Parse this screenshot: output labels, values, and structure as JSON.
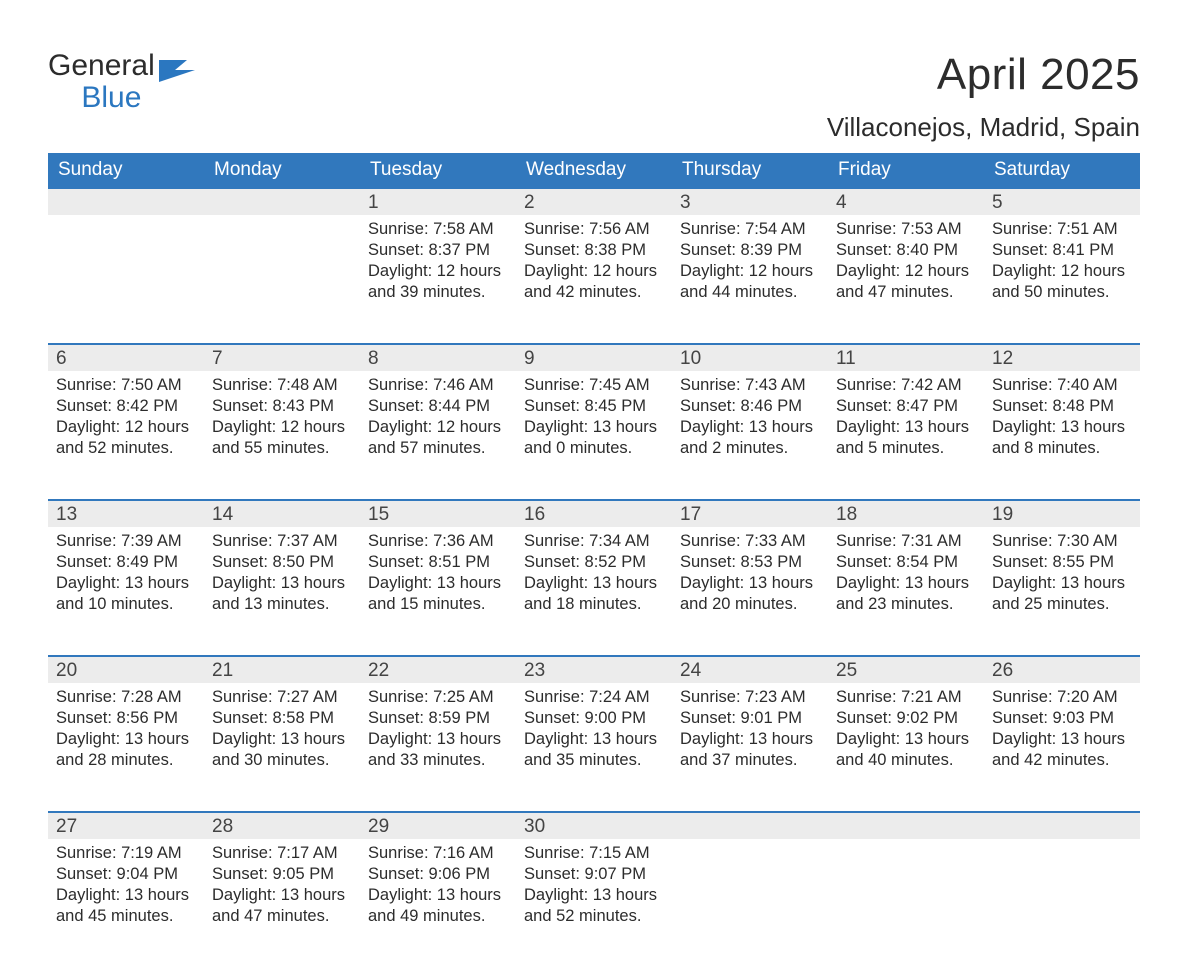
{
  "logo": {
    "line1": "General",
    "line2": "Blue"
  },
  "title": "April 2025",
  "subtitle": "Villaconejos, Madrid, Spain",
  "theme": {
    "header_bg": "#3178bd",
    "header_text": "#ffffff",
    "daynum_bg": "#ececec",
    "daynum_border": "#3178bd",
    "body_bg": "#ffffff",
    "text_color": "#2c2c2c",
    "logo_blue": "#2b77c0",
    "title_fontsize": 44,
    "subtitle_fontsize": 26,
    "header_fontsize": 19,
    "cell_fontsize": 16.5
  },
  "calendar": {
    "type": "table",
    "columns": [
      "Sunday",
      "Monday",
      "Tuesday",
      "Wednesday",
      "Thursday",
      "Friday",
      "Saturday"
    ],
    "weeks": [
      [
        null,
        null,
        {
          "day": "1",
          "sunrise": "Sunrise: 7:58 AM",
          "sunset": "Sunset: 8:37 PM",
          "daylight": "Daylight: 12 hours and 39 minutes."
        },
        {
          "day": "2",
          "sunrise": "Sunrise: 7:56 AM",
          "sunset": "Sunset: 8:38 PM",
          "daylight": "Daylight: 12 hours and 42 minutes."
        },
        {
          "day": "3",
          "sunrise": "Sunrise: 7:54 AM",
          "sunset": "Sunset: 8:39 PM",
          "daylight": "Daylight: 12 hours and 44 minutes."
        },
        {
          "day": "4",
          "sunrise": "Sunrise: 7:53 AM",
          "sunset": "Sunset: 8:40 PM",
          "daylight": "Daylight: 12 hours and 47 minutes."
        },
        {
          "day": "5",
          "sunrise": "Sunrise: 7:51 AM",
          "sunset": "Sunset: 8:41 PM",
          "daylight": "Daylight: 12 hours and 50 minutes."
        }
      ],
      [
        {
          "day": "6",
          "sunrise": "Sunrise: 7:50 AM",
          "sunset": "Sunset: 8:42 PM",
          "daylight": "Daylight: 12 hours and 52 minutes."
        },
        {
          "day": "7",
          "sunrise": "Sunrise: 7:48 AM",
          "sunset": "Sunset: 8:43 PM",
          "daylight": "Daylight: 12 hours and 55 minutes."
        },
        {
          "day": "8",
          "sunrise": "Sunrise: 7:46 AM",
          "sunset": "Sunset: 8:44 PM",
          "daylight": "Daylight: 12 hours and 57 minutes."
        },
        {
          "day": "9",
          "sunrise": "Sunrise: 7:45 AM",
          "sunset": "Sunset: 8:45 PM",
          "daylight": "Daylight: 13 hours and 0 minutes."
        },
        {
          "day": "10",
          "sunrise": "Sunrise: 7:43 AM",
          "sunset": "Sunset: 8:46 PM",
          "daylight": "Daylight: 13 hours and 2 minutes."
        },
        {
          "day": "11",
          "sunrise": "Sunrise: 7:42 AM",
          "sunset": "Sunset: 8:47 PM",
          "daylight": "Daylight: 13 hours and 5 minutes."
        },
        {
          "day": "12",
          "sunrise": "Sunrise: 7:40 AM",
          "sunset": "Sunset: 8:48 PM",
          "daylight": "Daylight: 13 hours and 8 minutes."
        }
      ],
      [
        {
          "day": "13",
          "sunrise": "Sunrise: 7:39 AM",
          "sunset": "Sunset: 8:49 PM",
          "daylight": "Daylight: 13 hours and 10 minutes."
        },
        {
          "day": "14",
          "sunrise": "Sunrise: 7:37 AM",
          "sunset": "Sunset: 8:50 PM",
          "daylight": "Daylight: 13 hours and 13 minutes."
        },
        {
          "day": "15",
          "sunrise": "Sunrise: 7:36 AM",
          "sunset": "Sunset: 8:51 PM",
          "daylight": "Daylight: 13 hours and 15 minutes."
        },
        {
          "day": "16",
          "sunrise": "Sunrise: 7:34 AM",
          "sunset": "Sunset: 8:52 PM",
          "daylight": "Daylight: 13 hours and 18 minutes."
        },
        {
          "day": "17",
          "sunrise": "Sunrise: 7:33 AM",
          "sunset": "Sunset: 8:53 PM",
          "daylight": "Daylight: 13 hours and 20 minutes."
        },
        {
          "day": "18",
          "sunrise": "Sunrise: 7:31 AM",
          "sunset": "Sunset: 8:54 PM",
          "daylight": "Daylight: 13 hours and 23 minutes."
        },
        {
          "day": "19",
          "sunrise": "Sunrise: 7:30 AM",
          "sunset": "Sunset: 8:55 PM",
          "daylight": "Daylight: 13 hours and 25 minutes."
        }
      ],
      [
        {
          "day": "20",
          "sunrise": "Sunrise: 7:28 AM",
          "sunset": "Sunset: 8:56 PM",
          "daylight": "Daylight: 13 hours and 28 minutes."
        },
        {
          "day": "21",
          "sunrise": "Sunrise: 7:27 AM",
          "sunset": "Sunset: 8:58 PM",
          "daylight": "Daylight: 13 hours and 30 minutes."
        },
        {
          "day": "22",
          "sunrise": "Sunrise: 7:25 AM",
          "sunset": "Sunset: 8:59 PM",
          "daylight": "Daylight: 13 hours and 33 minutes."
        },
        {
          "day": "23",
          "sunrise": "Sunrise: 7:24 AM",
          "sunset": "Sunset: 9:00 PM",
          "daylight": "Daylight: 13 hours and 35 minutes."
        },
        {
          "day": "24",
          "sunrise": "Sunrise: 7:23 AM",
          "sunset": "Sunset: 9:01 PM",
          "daylight": "Daylight: 13 hours and 37 minutes."
        },
        {
          "day": "25",
          "sunrise": "Sunrise: 7:21 AM",
          "sunset": "Sunset: 9:02 PM",
          "daylight": "Daylight: 13 hours and 40 minutes."
        },
        {
          "day": "26",
          "sunrise": "Sunrise: 7:20 AM",
          "sunset": "Sunset: 9:03 PM",
          "daylight": "Daylight: 13 hours and 42 minutes."
        }
      ],
      [
        {
          "day": "27",
          "sunrise": "Sunrise: 7:19 AM",
          "sunset": "Sunset: 9:04 PM",
          "daylight": "Daylight: 13 hours and 45 minutes."
        },
        {
          "day": "28",
          "sunrise": "Sunrise: 7:17 AM",
          "sunset": "Sunset: 9:05 PM",
          "daylight": "Daylight: 13 hours and 47 minutes."
        },
        {
          "day": "29",
          "sunrise": "Sunrise: 7:16 AM",
          "sunset": "Sunset: 9:06 PM",
          "daylight": "Daylight: 13 hours and 49 minutes."
        },
        {
          "day": "30",
          "sunrise": "Sunrise: 7:15 AM",
          "sunset": "Sunset: 9:07 PM",
          "daylight": "Daylight: 13 hours and 52 minutes."
        },
        null,
        null,
        null
      ]
    ]
  }
}
